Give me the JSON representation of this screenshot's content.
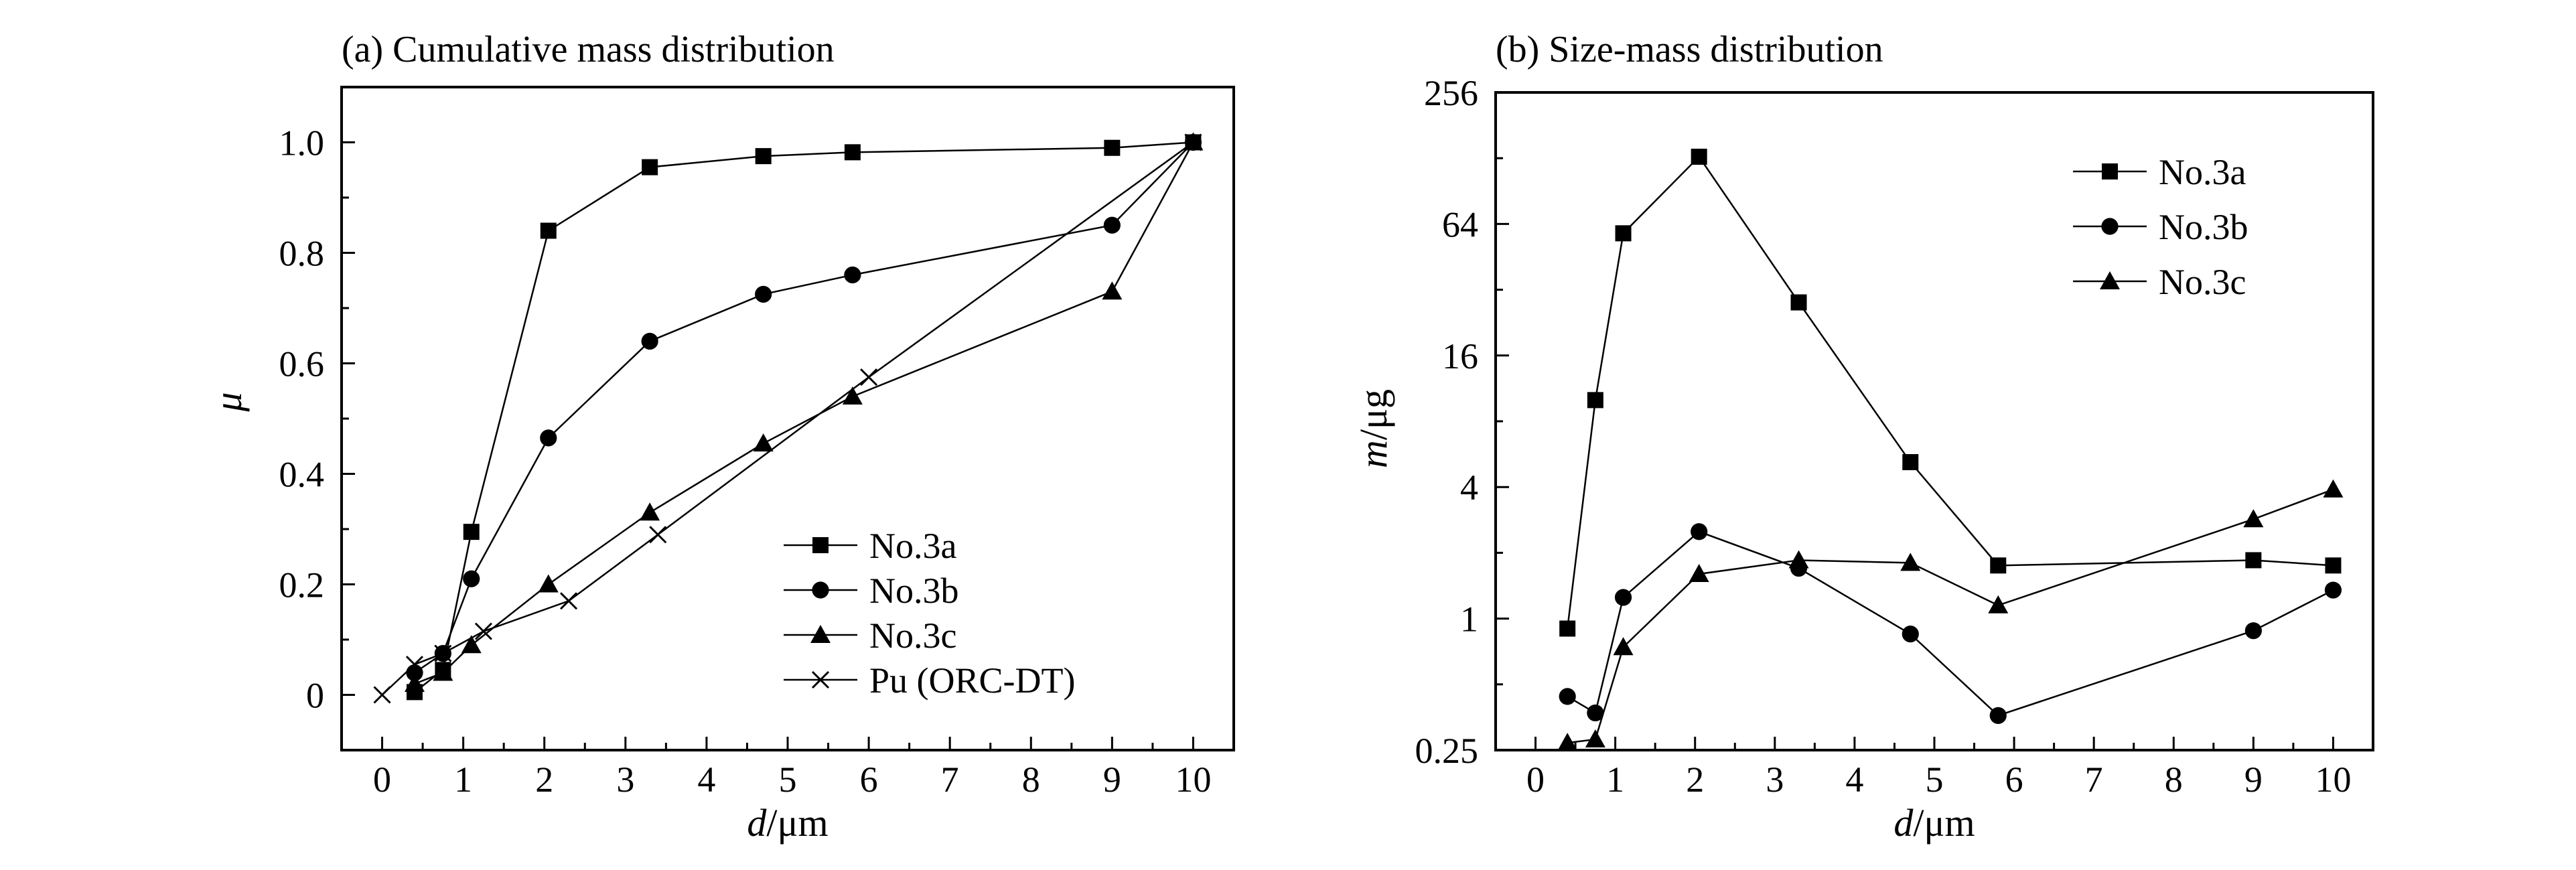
{
  "chart_data": [
    {
      "type": "line",
      "title": "(a) Cumulative mass distribution",
      "xlabel": "d/μm",
      "ylabel": "μ",
      "xlim": [
        -0.5,
        10.5
      ],
      "ylim": [
        -0.1,
        1.1
      ],
      "xticks": [
        "0",
        "1",
        "2",
        "3",
        "4",
        "5",
        "6",
        "7",
        "8",
        "9",
        "10"
      ],
      "yticks": [
        "0",
        "0.2",
        "0.4",
        "0.6",
        "0.8",
        "1.0"
      ],
      "legend_position": "bottom-right",
      "series": [
        {
          "name": "No.3a",
          "marker": "square",
          "x": [
            0.4,
            0.75,
            1.1,
            2.05,
            3.3,
            4.7,
            5.8,
            9.0,
            10
          ],
          "y": [
            0.005,
            0.045,
            0.295,
            0.84,
            0.955,
            0.975,
            0.982,
            0.99,
            1.0
          ]
        },
        {
          "name": "No.3b",
          "marker": "circle",
          "x": [
            0.4,
            0.75,
            1.1,
            2.05,
            3.3,
            4.7,
            5.8,
            9.0,
            10
          ],
          "y": [
            0.04,
            0.075,
            0.21,
            0.465,
            0.64,
            0.725,
            0.76,
            0.85,
            1.0
          ]
        },
        {
          "name": "No.3c",
          "marker": "triangle",
          "x": [
            0.4,
            0.75,
            1.1,
            2.05,
            3.3,
            4.7,
            5.8,
            9.0,
            10
          ],
          "y": [
            0.02,
            0.04,
            0.09,
            0.2,
            0.33,
            0.455,
            0.54,
            0.73,
            1.0
          ]
        },
        {
          "name": "Pu (ORC-DT)",
          "marker": "x",
          "x": [
            0,
            0.4,
            0.75,
            1.25,
            2.3,
            3.4,
            6.0,
            10
          ],
          "y": [
            0,
            0.055,
            0.075,
            0.115,
            0.17,
            0.29,
            0.575,
            1.0
          ]
        }
      ]
    },
    {
      "type": "line",
      "title": "(b) Size-mass distribution",
      "xlabel": "d/μm",
      "ylabel": "m/μg",
      "yscale": "log2",
      "xlim": [
        -0.5,
        10.5
      ],
      "ylim": [
        0.25,
        256
      ],
      "xticks": [
        "0",
        "1",
        "2",
        "3",
        "4",
        "5",
        "6",
        "7",
        "8",
        "9",
        "10"
      ],
      "yticks": [
        "0.25",
        "1",
        "4",
        "16",
        "64",
        "256"
      ],
      "legend_position": "top-right",
      "series": [
        {
          "name": "No.3a",
          "marker": "square",
          "x": [
            0.4,
            0.75,
            1.1,
            2.05,
            3.3,
            4.7,
            5.8,
            9.0,
            10
          ],
          "y": [
            0.9,
            10,
            58,
            130,
            28,
            5.2,
            1.75,
            1.85,
            1.75
          ]
        },
        {
          "name": "No.3b",
          "marker": "circle",
          "x": [
            0.4,
            0.75,
            1.1,
            2.05,
            3.3,
            4.7,
            5.8,
            9.0,
            10
          ],
          "y": [
            0.44,
            0.37,
            1.25,
            2.5,
            1.7,
            0.85,
            0.36,
            0.88,
            1.35
          ]
        },
        {
          "name": "No.3c",
          "marker": "triangle",
          "x": [
            0.4,
            0.75,
            1.1,
            2.05,
            3.3,
            4.7,
            5.8,
            9.0,
            10
          ],
          "y": [
            0.27,
            0.28,
            0.74,
            1.6,
            1.85,
            1.8,
            1.15,
            2.85,
            3.9
          ]
        }
      ]
    }
  ]
}
